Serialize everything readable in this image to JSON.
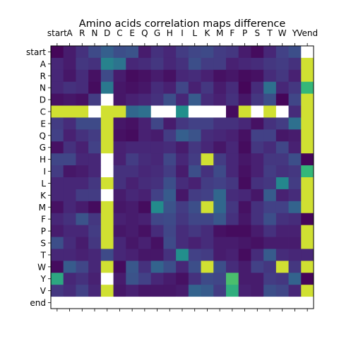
{
  "chart_data": {
    "type": "heatmap",
    "title": "Amino acids correlation maps difference",
    "x_labels": [
      "start",
      "A",
      "R",
      "N",
      "D",
      "C",
      "E",
      "Q",
      "G",
      "H",
      "I",
      "L",
      "K",
      "M",
      "F",
      "P",
      "S",
      "T",
      "W",
      "Y",
      "Vend"
    ],
    "y_labels": [
      "start",
      "A",
      "R",
      "N",
      "D",
      "C",
      "E",
      "Q",
      "G",
      "H",
      "I",
      "L",
      "K",
      "M",
      "F",
      "P",
      "S",
      "T",
      "W",
      "Y",
      "V",
      "end"
    ],
    "colormap": "viridis",
    "value_range": [
      0,
      1
    ],
    "note_missing": "null = blank (white) cell",
    "matrix": [
      [
        0.02,
        0.1,
        0.18,
        0.28,
        0.38,
        0.3,
        0.32,
        0.1,
        0.18,
        0.14,
        0.22,
        0.26,
        0.28,
        0.22,
        0.2,
        0.1,
        0.04,
        0.14,
        0.24,
        0.3,
        null
      ],
      [
        0.14,
        0.1,
        0.2,
        0.18,
        0.55,
        0.48,
        0.14,
        0.16,
        0.2,
        0.14,
        0.18,
        0.3,
        0.22,
        0.22,
        0.12,
        0.14,
        0.16,
        0.2,
        0.22,
        0.18,
        0.95
      ],
      [
        0.14,
        0.08,
        0.16,
        0.06,
        0.28,
        0.1,
        0.04,
        0.06,
        0.1,
        0.06,
        0.14,
        0.16,
        0.12,
        0.06,
        0.08,
        0.04,
        0.06,
        0.16,
        0.2,
        0.12,
        0.95
      ],
      [
        0.14,
        0.18,
        0.16,
        0.04,
        0.5,
        0.08,
        0.06,
        0.08,
        0.16,
        0.12,
        0.26,
        0.12,
        0.2,
        0.1,
        0.16,
        0.02,
        0.16,
        0.46,
        0.14,
        0.2,
        0.75
      ],
      [
        0.06,
        0.08,
        0.06,
        0.22,
        null,
        0.08,
        0.12,
        0.14,
        0.18,
        0.3,
        0.14,
        0.36,
        0.16,
        0.12,
        0.18,
        0.08,
        0.2,
        0.3,
        0.02,
        0.26,
        0.95
      ],
      [
        0.95,
        0.95,
        0.95,
        null,
        0.95,
        0.95,
        0.42,
        0.46,
        null,
        null,
        0.62,
        null,
        null,
        null,
        0.04,
        0.95,
        null,
        0.95,
        null,
        0.16,
        0.95
      ],
      [
        0.22,
        0.16,
        0.28,
        0.28,
        0.95,
        0.08,
        0.06,
        0.12,
        0.26,
        0.1,
        0.2,
        0.24,
        0.24,
        0.18,
        0.18,
        0.14,
        0.06,
        0.18,
        0.22,
        0.46,
        0.95
      ],
      [
        0.24,
        0.12,
        0.18,
        0.22,
        0.95,
        0.06,
        0.04,
        0.12,
        0.1,
        0.22,
        0.38,
        0.32,
        0.16,
        0.14,
        0.12,
        0.06,
        0.24,
        0.24,
        0.08,
        0.1,
        0.95
      ],
      [
        0.06,
        0.18,
        0.12,
        0.24,
        0.95,
        0.12,
        0.14,
        0.14,
        0.14,
        0.16,
        0.1,
        0.2,
        0.14,
        0.08,
        0.14,
        0.04,
        0.2,
        0.16,
        0.26,
        0.12,
        0.95
      ],
      [
        0.26,
        0.26,
        0.14,
        0.14,
        null,
        0.12,
        0.22,
        0.16,
        0.14,
        0.26,
        0.14,
        0.22,
        0.95,
        0.22,
        0.14,
        0.08,
        0.12,
        0.2,
        0.2,
        0.3,
        0.02
      ],
      [
        0.22,
        0.08,
        0.1,
        0.14,
        null,
        0.18,
        0.18,
        0.14,
        0.16,
        0.22,
        0.1,
        0.3,
        0.18,
        0.28,
        0.14,
        0.06,
        0.12,
        0.22,
        0.18,
        0.2,
        0.75
      ],
      [
        0.14,
        0.14,
        0.14,
        0.2,
        0.95,
        0.18,
        0.12,
        0.16,
        0.18,
        0.3,
        0.16,
        0.12,
        0.22,
        0.24,
        0.2,
        0.04,
        0.18,
        0.2,
        0.58,
        0.22,
        0.95
      ],
      [
        0.14,
        0.14,
        0.22,
        0.22,
        null,
        0.1,
        0.14,
        0.12,
        0.24,
        0.36,
        0.08,
        0.22,
        0.24,
        0.42,
        0.16,
        0.14,
        0.08,
        0.36,
        0.12,
        0.16,
        0.95
      ],
      [
        0.06,
        0.14,
        0.1,
        0.04,
        0.95,
        0.08,
        0.1,
        0.04,
        0.6,
        0.32,
        0.22,
        0.3,
        0.95,
        0.42,
        0.2,
        0.06,
        0.18,
        0.24,
        0.24,
        0.4,
        0.95
      ],
      [
        0.14,
        0.18,
        0.32,
        0.2,
        0.95,
        0.12,
        0.1,
        0.12,
        0.26,
        0.28,
        0.2,
        0.26,
        0.26,
        0.34,
        0.18,
        0.08,
        0.18,
        0.3,
        0.18,
        0.16,
        0.02
      ],
      [
        0.1,
        0.14,
        0.14,
        0.22,
        0.95,
        0.08,
        0.1,
        0.06,
        0.16,
        0.26,
        0.16,
        0.2,
        0.16,
        0.06,
        0.04,
        0.04,
        0.1,
        0.18,
        0.12,
        0.12,
        0.95
      ],
      [
        0.3,
        0.16,
        0.1,
        0.2,
        0.95,
        0.14,
        0.08,
        0.12,
        0.06,
        0.28,
        0.16,
        0.12,
        0.16,
        0.1,
        0.1,
        0.08,
        0.06,
        0.1,
        0.1,
        0.1,
        0.95
      ],
      [
        0.14,
        0.14,
        0.12,
        0.14,
        0.28,
        0.14,
        0.12,
        0.08,
        0.08,
        0.18,
        0.62,
        0.24,
        0.22,
        0.1,
        0.12,
        0.04,
        0.16,
        0.36,
        0.16,
        0.14,
        0.14
      ],
      [
        0.04,
        0.36,
        0.26,
        0.14,
        0.95,
        0.04,
        0.34,
        0.18,
        0.4,
        0.3,
        0.14,
        0.3,
        0.95,
        0.3,
        0.16,
        0.1,
        0.24,
        0.2,
        0.95,
        0.2,
        0.95
      ],
      [
        0.7,
        0.14,
        0.18,
        0.12,
        null,
        0.1,
        0.32,
        0.24,
        0.14,
        0.1,
        0.06,
        0.18,
        0.28,
        0.26,
        0.78,
        0.1,
        0.1,
        0.22,
        0.2,
        0.4,
        0.02
      ],
      [
        0.2,
        0.16,
        0.24,
        0.14,
        0.95,
        0.08,
        0.12,
        0.08,
        0.08,
        0.08,
        0.1,
        0.4,
        0.36,
        0.22,
        0.72,
        0.12,
        0.1,
        0.3,
        0.26,
        0.14,
        0.95
      ],
      [
        null,
        null,
        null,
        null,
        null,
        null,
        null,
        null,
        null,
        null,
        null,
        null,
        null,
        null,
        null,
        null,
        null,
        null,
        null,
        null,
        null
      ]
    ]
  }
}
